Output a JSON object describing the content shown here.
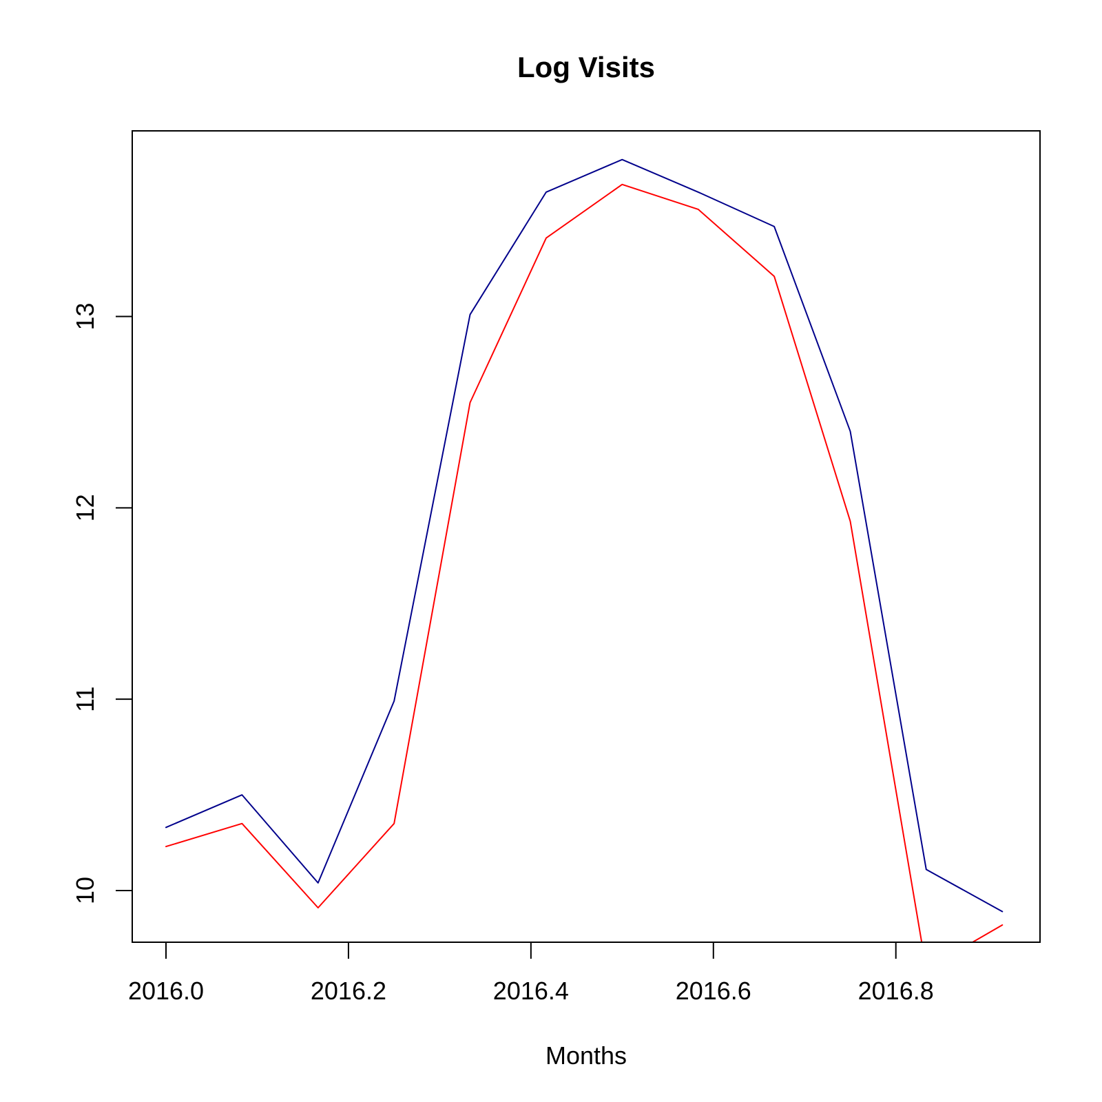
{
  "chart_data": {
    "type": "line",
    "title": "Log Visits",
    "xlabel": "Months",
    "ylabel": "",
    "xlim": [
      2015.963,
      2016.958
    ],
    "ylim": [
      9.73,
      13.97
    ],
    "x_ticks": [
      {
        "value": 2016.0,
        "label": "2016.0"
      },
      {
        "value": 2016.2,
        "label": "2016.2"
      },
      {
        "value": 2016.4,
        "label": "2016.4"
      },
      {
        "value": 2016.6,
        "label": "2016.6"
      },
      {
        "value": 2016.8,
        "label": "2016.8"
      }
    ],
    "y_ticks": [
      {
        "value": 10,
        "label": "10"
      },
      {
        "value": 11,
        "label": "11"
      },
      {
        "value": 12,
        "label": "12"
      },
      {
        "value": 13,
        "label": "13"
      }
    ],
    "x": [
      2016.0,
      2016.0833,
      2016.1667,
      2016.25,
      2016.3333,
      2016.4167,
      2016.5,
      2016.5833,
      2016.6667,
      2016.75,
      2016.8333,
      2016.9167
    ],
    "series": [
      {
        "color": "#00008B",
        "values": [
          10.33,
          10.5,
          10.04,
          10.99,
          13.01,
          13.65,
          13.82,
          13.65,
          13.47,
          12.4,
          10.11,
          9.89
        ]
      },
      {
        "color": "#FF0000",
        "values": [
          10.23,
          10.35,
          9.91,
          10.35,
          12.55,
          13.41,
          13.69,
          13.56,
          13.21,
          11.93,
          9.59,
          9.82
        ],
        "clipped": true
      }
    ],
    "grid": false,
    "legend": "none"
  }
}
